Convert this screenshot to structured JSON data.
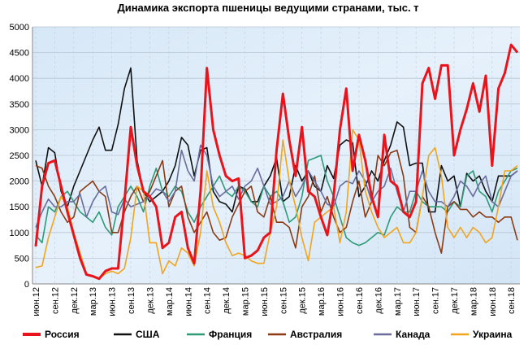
{
  "chart_data": {
    "type": "line",
    "title": "Динамика экспорта пшеницы ведущими странами, тыс. т",
    "categories": [
      "июн.12",
      null,
      null,
      "сен.12",
      null,
      null,
      "дек.12",
      null,
      null,
      "мар.13",
      null,
      null,
      "июн.13",
      null,
      null,
      "сен.13",
      null,
      null,
      "дек.13",
      null,
      null,
      "мар.14",
      null,
      null,
      "июн.14",
      null,
      null,
      "сен.14",
      null,
      null,
      "дек.14",
      null,
      null,
      "мар.15",
      null,
      null,
      "июн.15",
      null,
      null,
      "сен.15",
      null,
      null,
      "дек.15",
      null,
      null,
      "мар.16",
      null,
      null,
      "июн.16",
      null,
      null,
      "сен.16",
      null,
      null,
      "дек.16",
      null,
      null,
      "мар.17",
      null,
      null,
      "июн.17",
      null,
      null,
      "сен.17",
      null,
      null,
      "дек.17",
      null,
      null,
      "мар.18",
      null,
      null,
      "июн.18",
      null,
      null,
      "сен.18",
      null
    ],
    "series": [
      {
        "name": "Россия",
        "color": "#e8131b",
        "width": 3,
        "values": [
          730,
          1900,
          2350,
          2400,
          1900,
          1400,
          950,
          500,
          180,
          150,
          100,
          250,
          300,
          300,
          1600,
          3050,
          2300,
          1800,
          1700,
          1500,
          700,
          800,
          1300,
          1400,
          700,
          400,
          1800,
          4200,
          3000,
          2500,
          2100,
          2000,
          2050,
          500,
          550,
          650,
          900,
          1000,
          2600,
          3700,
          2800,
          2100,
          3050,
          1800,
          1700,
          1300,
          950,
          1700,
          3000,
          3800,
          2200,
          2900,
          2400,
          1700,
          1300,
          2900,
          2000,
          1900,
          1400,
          1300,
          1600,
          3900,
          4200,
          3600,
          4250,
          4250,
          2500,
          3000,
          3400,
          3900,
          3350,
          4050,
          2300,
          3800,
          4100,
          4650,
          4500
        ]
      },
      {
        "name": "США",
        "color": "#111111",
        "width": 1.6,
        "values": [
          2400,
          1900,
          2650,
          2550,
          1800,
          1500,
          1900,
          2200,
          2500,
          2800,
          3050,
          2600,
          2600,
          3100,
          3800,
          4200,
          2400,
          1800,
          1600,
          1700,
          1800,
          2000,
          2300,
          2850,
          2700,
          2100,
          2600,
          2650,
          1800,
          1600,
          1550,
          1400,
          1900,
          1850,
          1600,
          1600,
          1900,
          2100,
          2450,
          1600,
          1700,
          2300,
          2000,
          2200,
          1900,
          1800,
          2300,
          2050,
          2700,
          2800,
          2750,
          1700,
          1900,
          2200,
          2000,
          2400,
          2700,
          3150,
          3050,
          2300,
          2350,
          2350,
          1400,
          1400,
          2300,
          2000,
          2100,
          1500,
          2150,
          2000,
          2100,
          1800,
          1600,
          2100,
          2100,
          2100,
          2200
        ]
      },
      {
        "name": "Франция",
        "color": "#2e9a78",
        "width": 1.6,
        "values": [
          950,
          800,
          1500,
          1400,
          1700,
          1800,
          1600,
          1400,
          1300,
          1200,
          1400,
          1100,
          950,
          1500,
          1700,
          1900,
          1700,
          1400,
          1900,
          2250,
          1800,
          1700,
          1900,
          1800,
          1400,
          1200,
          1500,
          1700,
          1900,
          2100,
          1800,
          1700,
          1900,
          1800,
          1600,
          1500,
          1900,
          1700,
          1800,
          1600,
          1200,
          1300,
          1700,
          2400,
          2450,
          2500,
          2000,
          1700,
          1300,
          900,
          800,
          750,
          800,
          900,
          1000,
          950,
          1300,
          1500,
          1400,
          1400,
          1800,
          1600,
          1500,
          1500,
          1500,
          1400,
          1600,
          1500,
          2100,
          2200,
          1800,
          1700,
          1400,
          1800,
          2000,
          2200,
          2250
        ]
      },
      {
        "name": "Австралия",
        "color": "#8b3a14",
        "width": 1.6,
        "values": [
          2300,
          2250,
          1900,
          1700,
          1400,
          1200,
          1300,
          1800,
          1900,
          2000,
          1800,
          1700,
          1000,
          1000,
          1400,
          1700,
          1900,
          1600,
          1800,
          2100,
          2400,
          1500,
          1800,
          1900,
          1300,
          1000,
          1200,
          1400,
          1000,
          850,
          900,
          1300,
          1550,
          1800,
          1900,
          1400,
          1300,
          1700,
          1200,
          1200,
          1100,
          700,
          1500,
          1700,
          2100,
          1400,
          1700,
          1300,
          1000,
          1100,
          1600,
          2000,
          1300,
          1600,
          2500,
          2300,
          2550,
          2600,
          2100,
          1100,
          1000,
          1700,
          1500,
          1000,
          600,
          1500,
          1600,
          1450,
          1450,
          1300,
          1400,
          1300,
          1300,
          1200,
          1300,
          1300,
          850
        ]
      },
      {
        "name": "Канада",
        "color": "#6a6c9e",
        "width": 1.6,
        "values": [
          1100,
          1400,
          1650,
          1500,
          1500,
          1600,
          1600,
          1750,
          1300,
          1600,
          1800,
          1900,
          1400,
          1350,
          1650,
          1500,
          1550,
          1600,
          1700,
          1850,
          1800,
          1600,
          1800,
          2600,
          2200,
          2000,
          2700,
          2500,
          1900,
          1700,
          1800,
          1900,
          1650,
          1900,
          2000,
          2250,
          1900,
          1550,
          1600,
          1700,
          2000,
          1700,
          1900,
          2200,
          2000,
          1800,
          1550,
          1500,
          1900,
          2000,
          1950,
          2200,
          2000,
          1600,
          1800,
          1900,
          2250,
          1800,
          1400,
          1800,
          1800,
          2200,
          1800,
          1600,
          1600,
          1500,
          1700,
          2000,
          1900,
          1700,
          1950,
          2100,
          1600,
          1500,
          1800,
          2100,
          2200
        ]
      },
      {
        "name": "Украина",
        "color": "#f2a41c",
        "width": 1.6,
        "values": [
          320,
          350,
          900,
          1300,
          1700,
          1500,
          1000,
          600,
          200,
          150,
          100,
          200,
          250,
          200,
          300,
          900,
          1900,
          1800,
          800,
          800,
          200,
          450,
          350,
          700,
          600,
          350,
          1000,
          2200,
          1500,
          1200,
          800,
          550,
          600,
          550,
          450,
          400,
          400,
          1000,
          1500,
          2800,
          2000,
          1500,
          900,
          450,
          1200,
          1300,
          1400,
          1500,
          800,
          1400,
          3000,
          2800,
          1800,
          1400,
          1100,
          900,
          1000,
          1100,
          800,
          800,
          1000,
          1700,
          2500,
          2650,
          2100,
          1100,
          900,
          1100,
          900,
          1100,
          1000,
          800,
          900,
          1500,
          2200,
          2200,
          2300
        ]
      }
    ],
    "ylim": [
      0,
      5000
    ],
    "yticks": [
      0,
      500,
      1000,
      1500,
      2000,
      2500,
      3000,
      3500,
      4000,
      4500,
      5000
    ],
    "grid": true
  }
}
